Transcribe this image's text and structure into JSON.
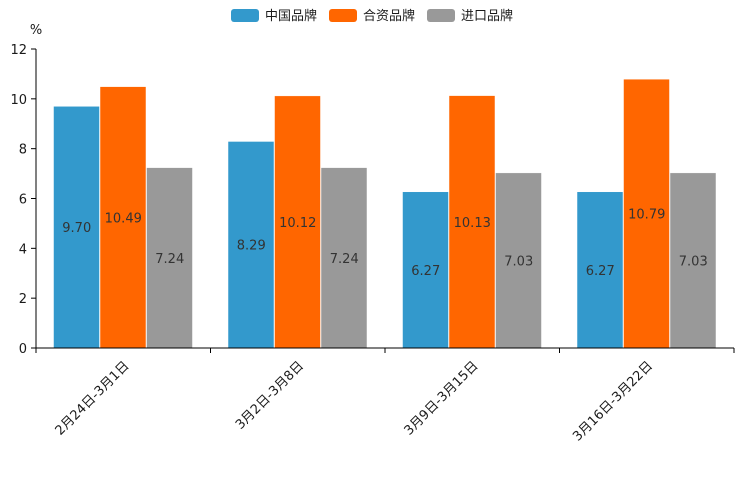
{
  "chart_data": {
    "type": "bar",
    "title": "",
    "xlabel": "",
    "ylabel": "%",
    "ylim": [
      0,
      12
    ],
    "yticks": [
      0,
      2,
      4,
      6,
      8,
      10,
      12
    ],
    "grid": false,
    "legend_position": "top-center",
    "categories": [
      "2月24日-3月1日",
      "3月2日-3月8日",
      "3月9日-3月15日",
      "3月16日-3月22日"
    ],
    "series": [
      {
        "name": "中国品牌",
        "color": "#3399CC",
        "values": [
          9.7,
          8.29,
          6.27,
          6.27
        ],
        "labels": [
          "9.70",
          "8.29",
          "6.27",
          "6.27"
        ]
      },
      {
        "name": "合资品牌",
        "color": "#FF6600",
        "values": [
          10.49,
          10.12,
          10.13,
          10.79
        ],
        "labels": [
          "10.49",
          "10.12",
          "10.13",
          "10.79"
        ]
      },
      {
        "name": "进口品牌",
        "color": "#999999",
        "values": [
          7.24,
          7.24,
          7.03,
          7.03
        ],
        "labels": [
          "7.24",
          "7.24",
          "7.03",
          "7.03"
        ]
      }
    ]
  }
}
